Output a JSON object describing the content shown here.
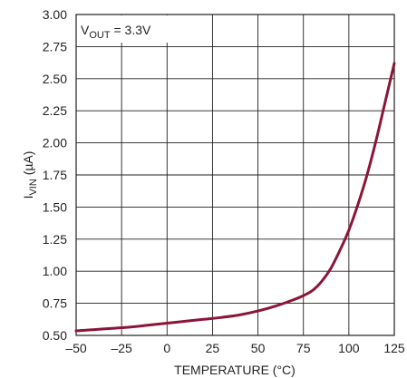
{
  "chart_data": {
    "type": "line",
    "xlabel": "TEMPERATURE (°C)",
    "ylabel": {
      "main": "I",
      "sub": "VIN",
      "rest": " (µA)"
    },
    "annotation": {
      "main": "V",
      "sub": "OUT",
      "rest": " = 3.3V"
    },
    "xlim": [
      -50,
      125
    ],
    "ylim": [
      0.5,
      3.0
    ],
    "xticks": [
      -50,
      -25,
      0,
      25,
      50,
      75,
      100,
      125
    ],
    "xtick_labels": [
      "–50",
      "–25",
      "0",
      "25",
      "50",
      "75",
      "100",
      "125"
    ],
    "yticks": [
      0.5,
      0.75,
      1.0,
      1.25,
      1.5,
      1.75,
      2.0,
      2.25,
      2.5,
      2.75,
      3.0
    ],
    "ytick_labels": [
      "0.50",
      "0.75",
      "1.00",
      "1.25",
      "1.50",
      "1.75",
      "2.00",
      "2.25",
      "2.50",
      "2.75",
      "3.00"
    ],
    "grid": true,
    "line_color": "#8b1538",
    "series": [
      {
        "x": [
          -50,
          -40,
          -30,
          -20,
          -10,
          0,
          10,
          20,
          30,
          40,
          50,
          60,
          70,
          75,
          80,
          85,
          90,
          95,
          100,
          105,
          110,
          115,
          120,
          125
        ],
        "y": [
          0.535,
          0.545,
          0.555,
          0.565,
          0.58,
          0.595,
          0.61,
          0.625,
          0.64,
          0.66,
          0.69,
          0.73,
          0.78,
          0.81,
          0.85,
          0.92,
          1.02,
          1.16,
          1.32,
          1.52,
          1.75,
          2.02,
          2.32,
          2.62
        ]
      }
    ]
  }
}
